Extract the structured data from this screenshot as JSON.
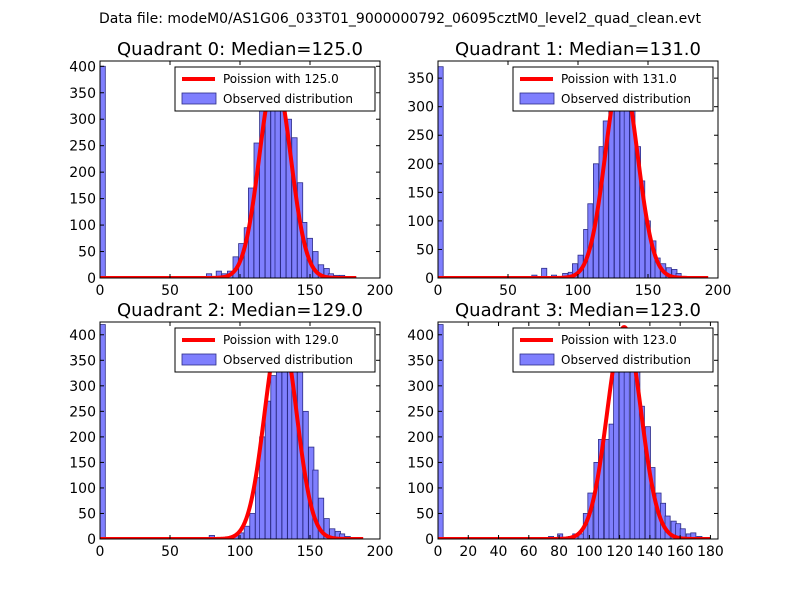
{
  "suptitle": "Data file: modeM0/AS1G06_033T01_9000000792_06095cztM0_level2_quad_clean.evt",
  "colors": {
    "bar_fill": "#7f7ffe",
    "bar_edge": "#2d2d88",
    "curve": "#ff0000",
    "axes": "#000000",
    "background": "#ffffff"
  },
  "chart_data": [
    {
      "type": "bar",
      "title": "Quadrant 0: Median=125.0",
      "xlim": [
        0,
        200
      ],
      "ylim": [
        0,
        410
      ],
      "xticks": [
        0,
        50,
        100,
        150,
        200
      ],
      "yticks": [
        0,
        50,
        100,
        150,
        200,
        250,
        300,
        350,
        400
      ],
      "bin_width": 3.8,
      "bins": [
        [
          0,
          400
        ],
        [
          64,
          3
        ],
        [
          72,
          3
        ],
        [
          76,
          8
        ],
        [
          83,
          13
        ],
        [
          87,
          8
        ],
        [
          91,
          13
        ],
        [
          95,
          40
        ],
        [
          99,
          65
        ],
        [
          103,
          95
        ],
        [
          106,
          170
        ],
        [
          110,
          255
        ],
        [
          114,
          340
        ],
        [
          118,
          360
        ],
        [
          122,
          380
        ],
        [
          125,
          360
        ],
        [
          129,
          345
        ],
        [
          133,
          300
        ],
        [
          137,
          265
        ],
        [
          141,
          180
        ],
        [
          144,
          105
        ],
        [
          148,
          75
        ],
        [
          152,
          50
        ],
        [
          156,
          25
        ],
        [
          160,
          18
        ],
        [
          163,
          8
        ],
        [
          167,
          5
        ],
        [
          171,
          5
        ],
        [
          175,
          3
        ],
        [
          179,
          2
        ]
      ],
      "curve": {
        "label": "Poission with 125.0",
        "mu": 125,
        "peak": 380,
        "xrange": [
          0,
          183
        ]
      },
      "legend": {
        "curve": "Poission with 125.0",
        "hist": "Observed distribution"
      }
    },
    {
      "type": "bar",
      "title": "Quadrant 1: Median=131.0",
      "xlim": [
        0,
        200
      ],
      "ylim": [
        0,
        380
      ],
      "xticks": [
        0,
        50,
        100,
        150,
        200
      ],
      "yticks": [
        0,
        50,
        100,
        150,
        200,
        250,
        300,
        350
      ],
      "bin_width": 3.7,
      "bins": [
        [
          0,
          370
        ],
        [
          67,
          5
        ],
        [
          74,
          17
        ],
        [
          81,
          5
        ],
        [
          89,
          8
        ],
        [
          93,
          10
        ],
        [
          96,
          25
        ],
        [
          100,
          40
        ],
        [
          104,
          85
        ],
        [
          107,
          130
        ],
        [
          111,
          200
        ],
        [
          115,
          230
        ],
        [
          118,
          275
        ],
        [
          122,
          330
        ],
        [
          126,
          340
        ],
        [
          130,
          355
        ],
        [
          133,
          340
        ],
        [
          137,
          310
        ],
        [
          141,
          230
        ],
        [
          144,
          170
        ],
        [
          148,
          100
        ],
        [
          152,
          65
        ],
        [
          155,
          35
        ],
        [
          159,
          25
        ],
        [
          163,
          18
        ],
        [
          167,
          15
        ],
        [
          170,
          8
        ],
        [
          174,
          3
        ],
        [
          178,
          2
        ]
      ],
      "curve": {
        "label": "Poission with 131.0",
        "mu": 131,
        "peak": 360,
        "xrange": [
          0,
          193
        ]
      },
      "legend": {
        "curve": "Poission with 131.0",
        "hist": "Observed distribution"
      }
    },
    {
      "type": "bar",
      "title": "Quadrant 2: Median=129.0",
      "xlim": [
        0,
        200
      ],
      "ylim": [
        0,
        425
      ],
      "xticks": [
        0,
        50,
        100,
        150,
        200
      ],
      "yticks": [
        0,
        50,
        100,
        150,
        200,
        250,
        300,
        350,
        400
      ],
      "bin_width": 3.8,
      "bins": [
        [
          0,
          420
        ],
        [
          69,
          3
        ],
        [
          78,
          7
        ],
        [
          85,
          3
        ],
        [
          95,
          8
        ],
        [
          99,
          12
        ],
        [
          103,
          25
        ],
        [
          107,
          50
        ],
        [
          111,
          120
        ],
        [
          114,
          200
        ],
        [
          118,
          270
        ],
        [
          122,
          320
        ],
        [
          126,
          345
        ],
        [
          130,
          400
        ],
        [
          134,
          380
        ],
        [
          137,
          370
        ],
        [
          141,
          340
        ],
        [
          145,
          250
        ],
        [
          149,
          180
        ],
        [
          152,
          135
        ],
        [
          156,
          80
        ],
        [
          160,
          40
        ],
        [
          164,
          20
        ],
        [
          168,
          15
        ],
        [
          171,
          10
        ],
        [
          175,
          5
        ]
      ],
      "curve": {
        "label": "Poission with 129.0",
        "mu": 129,
        "peak": 410,
        "xrange": [
          0,
          188
        ]
      },
      "legend": {
        "curve": "Poission with 129.0",
        "hist": "Observed distribution"
      }
    },
    {
      "type": "bar",
      "title": "Quadrant 3: Median=123.0",
      "xlim": [
        0,
        185
      ],
      "ylim": [
        0,
        425
      ],
      "xticks": [
        0,
        20,
        40,
        60,
        80,
        100,
        120,
        140,
        160,
        180
      ],
      "yticks": [
        0,
        50,
        100,
        150,
        200,
        250,
        300,
        350,
        400
      ],
      "bin_width": 3.4,
      "bins": [
        [
          0,
          420
        ],
        [
          73,
          5
        ],
        [
          79,
          10
        ],
        [
          86,
          5
        ],
        [
          89,
          10
        ],
        [
          93,
          10
        ],
        [
          96,
          50
        ],
        [
          99,
          90
        ],
        [
          103,
          150
        ],
        [
          106,
          195
        ],
        [
          110,
          195
        ],
        [
          113,
          225
        ],
        [
          116,
          350
        ],
        [
          120,
          410
        ],
        [
          123,
          375
        ],
        [
          127,
          360
        ],
        [
          130,
          340
        ],
        [
          133,
          260
        ],
        [
          137,
          220
        ],
        [
          140,
          140
        ],
        [
          144,
          90
        ],
        [
          147,
          70
        ],
        [
          150,
          45
        ],
        [
          154,
          35
        ],
        [
          157,
          30
        ],
        [
          160,
          20
        ],
        [
          164,
          10
        ],
        [
          167,
          12
        ],
        [
          171,
          5
        ]
      ],
      "curve": {
        "label": "Poission with 123.0",
        "mu": 123,
        "peak": 415,
        "xrange": [
          0,
          180
        ]
      },
      "legend": {
        "curve": "Poission with 123.0",
        "hist": "Observed distribution"
      }
    }
  ]
}
